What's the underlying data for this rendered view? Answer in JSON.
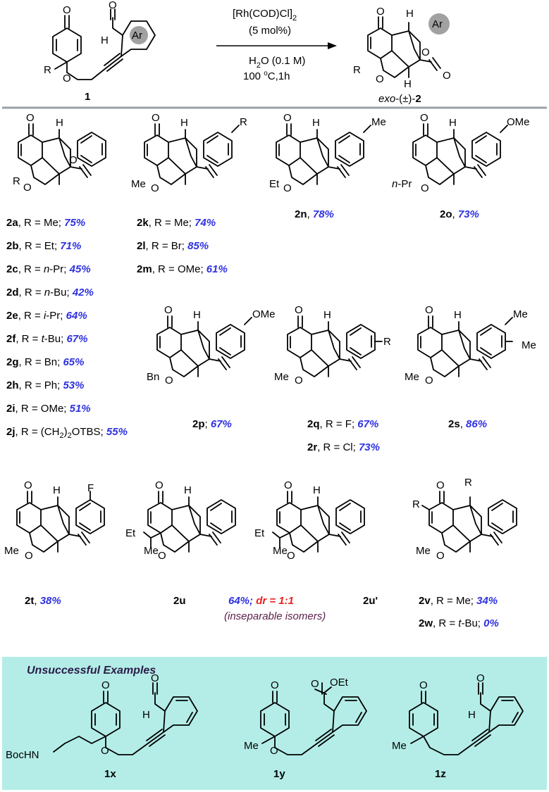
{
  "reaction": {
    "conditions": [
      "[Rh(COD)Cl]",
      "2",
      "(5 mol%)",
      "H",
      "2",
      "O (0.1 M)",
      "100 ",
      "o",
      "C,1h"
    ],
    "sm_label": "1",
    "product_prefix": "exo",
    "product_mid": "-(±)-",
    "product_label": "2",
    "ar": "Ar"
  },
  "atoms": {
    "O": "O",
    "H": "H",
    "R": "R",
    "Me": "Me",
    "Et": "Et",
    "nPr_n": "n",
    "nPr_pr": "-Pr",
    "Bn": "Bn",
    "OMe": "OMe",
    "F": "F",
    "Ar": "Ar",
    "OEt": "OEt",
    "BocHN": "BocHN",
    "Nbox": "N"
  },
  "row1": {
    "a": {
      "id": "2a",
      "text": ", R = Me; ",
      "yield": "75%"
    },
    "b": {
      "id": "2b",
      "text": ", R = Et; ",
      "yield": "71%"
    },
    "c": {
      "id": "2c",
      "pre": ", R = ",
      "em": "n",
      "post": "-Pr; ",
      "yield": "45%"
    },
    "d": {
      "id": "2d",
      "pre": ", R = ",
      "em": "n",
      "post": "-Bu; ",
      "yield": "42%"
    },
    "e": {
      "id": "2e",
      "pre": ", R = ",
      "em": "i",
      "post": "-Pr; ",
      "yield": "64%"
    },
    "f": {
      "id": "2f",
      "pre": ", R = ",
      "em": "t",
      "post": "-Bu; ",
      "yield": "67%"
    },
    "g": {
      "id": "2g",
      "text": ", R = Bn; ",
      "yield": "65%"
    },
    "h": {
      "id": "2h",
      "text": ",  R = Ph; ",
      "yield": "53%"
    },
    "i": {
      "id": "2i",
      "text": ", R = OMe; ",
      "yield": "51%"
    },
    "j": {
      "id": "2j",
      "pre": ", R = (CH",
      "sub": "2",
      "post": ")",
      "sub2": "2",
      "post2": "OTBS; ",
      "yield": "55%"
    },
    "k": {
      "id": "2k",
      "text": ", R = Me; ",
      "yield": "74%"
    },
    "l": {
      "id": "2l",
      "text": ", R = Br; ",
      "yield": "85%"
    },
    "m": {
      "id": "2m",
      "text": ", R = OMe; ",
      "yield": "61%"
    },
    "n": {
      "id": "2n",
      "text": ", ",
      "yield": "78%"
    },
    "o": {
      "id": "2o",
      "text": ", ",
      "yield": "73%"
    }
  },
  "row2": {
    "p": {
      "id": "2p",
      "text": "; ",
      "yield": "67%"
    },
    "q": {
      "id": "2q",
      "text": ", R = F; ",
      "yield": "67%"
    },
    "r": {
      "id": "2r",
      "text": ", R = Cl; ",
      "yield": "73%"
    },
    "s": {
      "id": "2s",
      "text": ", ",
      "yield": "86%"
    }
  },
  "row3": {
    "t": {
      "id": "2t",
      "text": ", ",
      "yield": "38%"
    },
    "u": {
      "id": "2u"
    },
    "u2": {
      "id": "2u'"
    },
    "u_yield": "64%; ",
    "u_dr": "dr = 1:1",
    "u_note": "(inseparable isomers)",
    "v": {
      "id": "2v",
      "text": ", R = Me; ",
      "yield": "34%"
    },
    "w": {
      "id": "2w",
      "pre": ", R = ",
      "em": "t",
      "post": "-Bu; ",
      "yield": "0%"
    }
  },
  "unsuccessful": {
    "title": "Unsuccessful Examples",
    "x": "1x",
    "y": "1y",
    "z": "1z"
  },
  "colors": {
    "yield": "#2e31e0",
    "dr": "#e8211d",
    "box": "#b4ede7",
    "rule": "#9aa1a6",
    "ar_circle": "#a1a1a1",
    "note": "#5b1f49"
  }
}
